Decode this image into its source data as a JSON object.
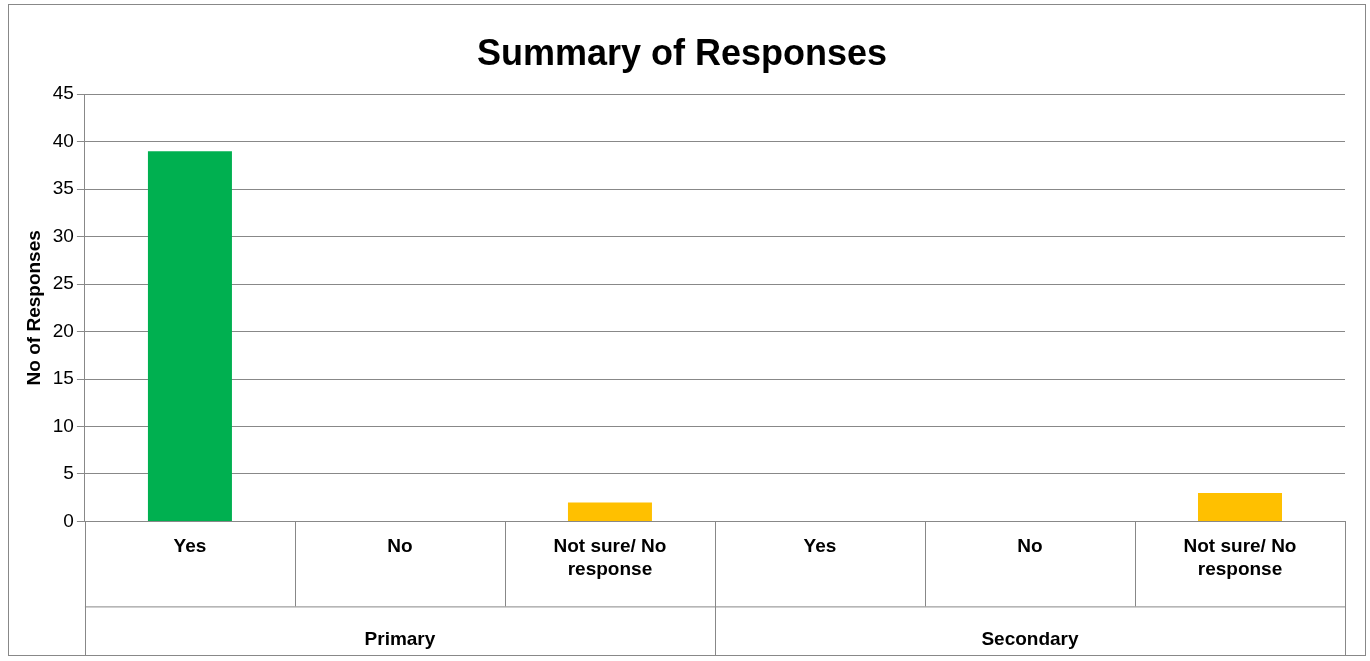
{
  "chart_data": {
    "type": "bar",
    "title": "Summary of Responses",
    "ylabel": "No of Responses",
    "categories": [
      "Yes",
      "No",
      "Not sure/ No response",
      "Yes",
      "No",
      "Not sure/ No response"
    ],
    "values": [
      39,
      0,
      2,
      0,
      0,
      3
    ],
    "colors": [
      "#00b050",
      null,
      "#ffc000",
      null,
      null,
      "#ffc000"
    ],
    "ylim": [
      0,
      45
    ],
    "yticks": [
      0,
      5,
      10,
      15,
      20,
      25,
      30,
      35,
      40,
      45
    ],
    "grid": "y",
    "legend": false,
    "annotations": [
      "Primary",
      "Secondary"
    ]
  }
}
